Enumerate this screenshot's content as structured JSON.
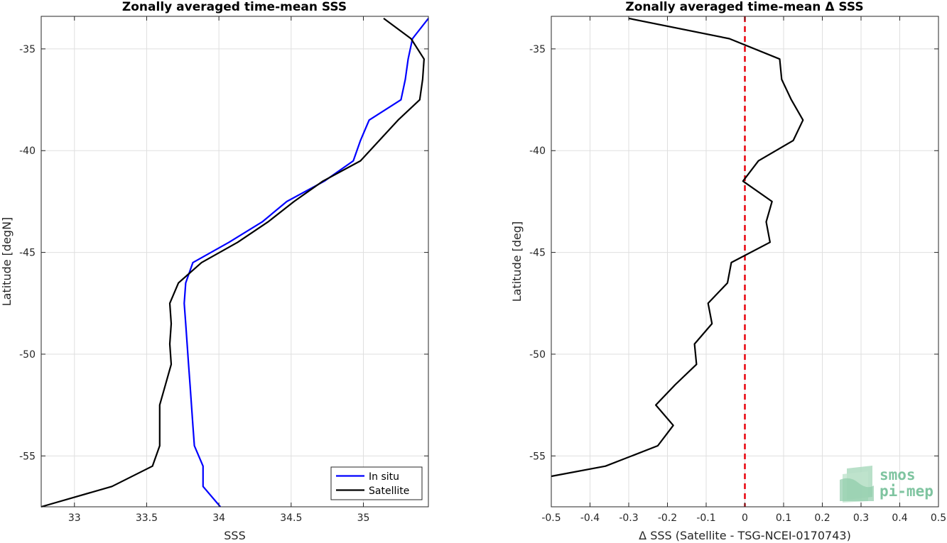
{
  "colors": {
    "in_situ": "#0000ff",
    "satellite": "#000000",
    "zero_line": "#e8000b",
    "logo": "#7fc4a0"
  },
  "logo": {
    "icon": "smos-pimep-logo-icon",
    "line1": "smos",
    "line2": "pi-mep"
  },
  "chart_data": [
    {
      "type": "line",
      "title": "Zonally averaged time-mean SSS",
      "xlabel": "SSS",
      "ylabel": "Latitude [degN]",
      "xlim": [
        32.77,
        35.45
      ],
      "ylim": [
        -57.5,
        -33.4
      ],
      "xticks": [
        33,
        33.5,
        34,
        34.5,
        35
      ],
      "xtick_labels": [
        "33",
        "33.5",
        "34",
        "34.5",
        "35"
      ],
      "yticks": [
        -35,
        -40,
        -45,
        -50,
        -55
      ],
      "ytick_labels": [
        "-35",
        "-40",
        "-45",
        "-50",
        "-55"
      ],
      "grid": true,
      "legend_position": "bottom-right",
      "series": [
        {
          "name": "In situ",
          "color": "#0000ff",
          "points": [
            [
              35.45,
              -33.5
            ],
            [
              35.34,
              -34.5
            ],
            [
              35.31,
              -35.5
            ],
            [
              35.29,
              -36.5
            ],
            [
              35.26,
              -37.5
            ],
            [
              35.04,
              -38.5
            ],
            [
              34.98,
              -39.5
            ],
            [
              34.93,
              -40.5
            ],
            [
              34.73,
              -41.5
            ],
            [
              34.47,
              -42.5
            ],
            [
              34.3,
              -43.5
            ],
            [
              34.07,
              -44.5
            ],
            [
              33.82,
              -45.5
            ],
            [
              33.77,
              -46.5
            ],
            [
              33.76,
              -47.5
            ],
            [
              33.77,
              -48.5
            ],
            [
              33.78,
              -49.5
            ],
            [
              33.79,
              -50.5
            ],
            [
              33.8,
              -51.5
            ],
            [
              33.81,
              -52.5
            ],
            [
              33.82,
              -53.5
            ],
            [
              33.83,
              -54.5
            ],
            [
              33.89,
              -55.5
            ],
            [
              33.89,
              -56.5
            ],
            [
              34.01,
              -57.5
            ]
          ]
        },
        {
          "name": "Satellite",
          "color": "#000000",
          "points": [
            [
              35.14,
              -33.5
            ],
            [
              35.33,
              -34.5
            ],
            [
              35.42,
              -35.5
            ],
            [
              35.41,
              -36.5
            ],
            [
              35.39,
              -37.5
            ],
            [
              35.24,
              -38.5
            ],
            [
              35.11,
              -39.5
            ],
            [
              34.98,
              -40.5
            ],
            [
              34.72,
              -41.5
            ],
            [
              34.52,
              -42.5
            ],
            [
              34.34,
              -43.5
            ],
            [
              34.13,
              -44.5
            ],
            [
              33.88,
              -45.5
            ],
            [
              33.72,
              -46.5
            ],
            [
              33.66,
              -47.5
            ],
            [
              33.67,
              -48.5
            ],
            [
              33.66,
              -49.5
            ],
            [
              33.67,
              -50.5
            ],
            [
              33.63,
              -51.5
            ],
            [
              33.59,
              -52.5
            ],
            [
              33.59,
              -53.5
            ],
            [
              33.59,
              -54.5
            ],
            [
              33.54,
              -55.5
            ],
            [
              33.26,
              -56.5
            ],
            [
              32.77,
              -57.5
            ]
          ]
        }
      ]
    },
    {
      "type": "line",
      "title": "Zonally averaged time-mean Δ SSS",
      "xlabel": "Δ SSS (Satellite - TSG-NCEI-0170743)",
      "ylabel": "Latitude [deg]",
      "xlim": [
        -0.5,
        0.5
      ],
      "ylim": [
        -57.5,
        -33.4
      ],
      "xticks": [
        -0.5,
        -0.4,
        -0.3,
        -0.2,
        -0.1,
        0,
        0.1,
        0.2,
        0.3,
        0.4,
        0.5
      ],
      "xtick_labels": [
        "-0.5",
        "-0.4",
        "-0.3",
        "-0.2",
        "-0.1",
        "0",
        "0.1",
        "0.2",
        "0.3",
        "0.4",
        "0.5"
      ],
      "yticks": [
        -35,
        -40,
        -45,
        -50,
        -55
      ],
      "ytick_labels": [
        "-35",
        "-40",
        "-45",
        "-50",
        "-55"
      ],
      "grid": true,
      "reference_line": {
        "x": 0,
        "style": "dashed",
        "color": "#e8000b"
      },
      "series": [
        {
          "color": "#000000",
          "points": [
            [
              -0.3,
              -33.5
            ],
            [
              -0.04,
              -34.5
            ],
            [
              0.09,
              -35.5
            ],
            [
              0.095,
              -36.5
            ],
            [
              0.12,
              -37.5
            ],
            [
              0.15,
              -38.5
            ],
            [
              0.125,
              -39.5
            ],
            [
              0.035,
              -40.5
            ],
            [
              -0.005,
              -41.5
            ],
            [
              0.07,
              -42.5
            ],
            [
              0.055,
              -43.5
            ],
            [
              0.065,
              -44.5
            ],
            [
              -0.035,
              -45.5
            ],
            [
              -0.045,
              -46.5
            ],
            [
              -0.095,
              -47.5
            ],
            [
              -0.085,
              -48.5
            ],
            [
              -0.13,
              -49.5
            ],
            [
              -0.125,
              -50.5
            ],
            [
              -0.18,
              -51.5
            ],
            [
              -0.23,
              -52.5
            ],
            [
              -0.185,
              -53.5
            ],
            [
              -0.225,
              -54.5
            ],
            [
              -0.36,
              -55.5
            ],
            [
              -0.5,
              -56.0
            ]
          ]
        }
      ]
    }
  ]
}
